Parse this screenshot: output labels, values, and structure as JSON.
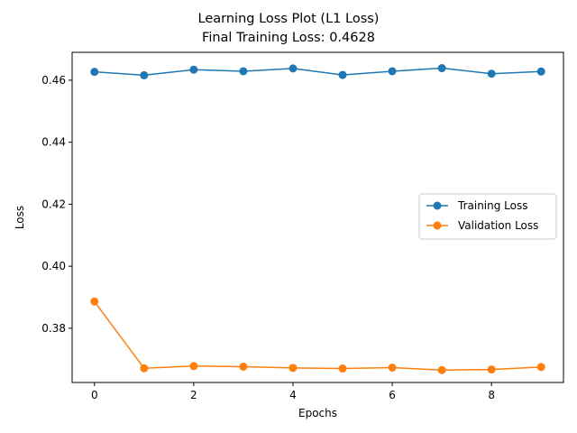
{
  "chart_data": {
    "type": "line",
    "title": "Learning Loss Plot (L1 Loss)",
    "subtitle": "Final Training Loss: 0.4628",
    "xlabel": "Epochs",
    "ylabel": "Loss",
    "x": [
      0,
      1,
      2,
      3,
      4,
      5,
      6,
      7,
      8,
      9
    ],
    "xlim": [
      -0.45,
      9.45
    ],
    "ylim": [
      0.3625,
      0.469
    ],
    "xticks": [
      0,
      2,
      4,
      6,
      8
    ],
    "yticks": [
      0.38,
      0.4,
      0.42,
      0.44,
      0.46
    ],
    "ytick_labels": [
      "0.38",
      "0.40",
      "0.42",
      "0.44",
      "0.46"
    ],
    "grid": false,
    "legend_position": "center-right",
    "series": [
      {
        "name": "Training Loss",
        "color": "#1f77b4",
        "values": [
          0.4627,
          0.4616,
          0.4634,
          0.4629,
          0.4638,
          0.4617,
          0.4629,
          0.4639,
          0.4621,
          0.4628
        ]
      },
      {
        "name": "Validation Loss",
        "color": "#ff7f0e",
        "values": [
          0.3886,
          0.3671,
          0.3678,
          0.3676,
          0.3672,
          0.367,
          0.3673,
          0.3665,
          0.3667,
          0.3675
        ]
      }
    ]
  }
}
